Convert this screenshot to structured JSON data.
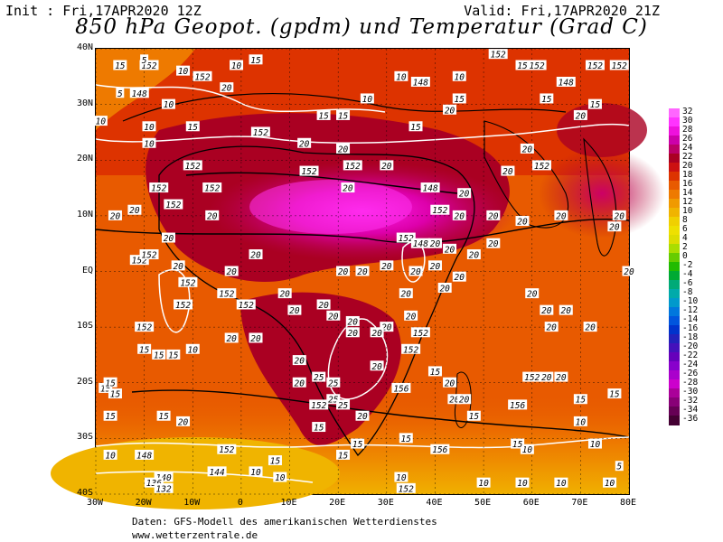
{
  "header": {
    "init": "Init : Fri,17APR2020 12Z",
    "valid": "Valid: Fri,17APR2020 21Z",
    "title": "850 hPa Geopot. (gpdm) und Temperatur (Grad C)"
  },
  "axes": {
    "lat_labels": [
      "40N",
      "30N",
      "20N",
      "10N",
      "EQ",
      "10S",
      "20S",
      "30S",
      "40S"
    ],
    "lon_labels": [
      "30W",
      "20W",
      "10W",
      "0",
      "10E",
      "20E",
      "30E",
      "40E",
      "50E",
      "60E",
      "70E",
      "80E"
    ]
  },
  "legend": {
    "labels": [
      "32",
      "30",
      "28",
      "26",
      "24",
      "22",
      "20",
      "18",
      "16",
      "14",
      "12",
      "10",
      "8",
      "6",
      "4",
      "2",
      "0",
      "-2",
      "-4",
      "-6",
      "-8",
      "-10",
      "-12",
      "-14",
      "-16",
      "-18",
      "-20",
      "-22",
      "-24",
      "-26",
      "-28",
      "-30",
      "-32",
      "-34",
      "-36"
    ],
    "colors": [
      "#ff66ff",
      "#ff33ff",
      "#ee11dd",
      "#cc00aa",
      "#bb0066",
      "#aa0022",
      "#cc1111",
      "#dd3300",
      "#e85a00",
      "#ee7a00",
      "#f09a00",
      "#f0b400",
      "#f0d000",
      "#eee000",
      "#dddd00",
      "#aadd00",
      "#66cc00",
      "#22bb00",
      "#00aa33",
      "#00aa77",
      "#00aaaa",
      "#0099cc",
      "#0077dd",
      "#0055dd",
      "#0033cc",
      "#2222bb",
      "#4411bb",
      "#6600bb",
      "#8800cc",
      "#aa00cc",
      "#cc00cc",
      "#aa0099",
      "#880077",
      "#660055",
      "#440033"
    ]
  },
  "contour_labels": [
    {
      "t": "15",
      "lon": -25,
      "lat": 37
    },
    {
      "t": "152",
      "lon": -19,
      "lat": 37
    },
    {
      "t": "10",
      "lon": -12,
      "lat": 36
    },
    {
      "t": "152",
      "lon": -8,
      "lat": 35
    },
    {
      "t": "10",
      "lon": -1,
      "lat": 37
    },
    {
      "t": "15",
      "lon": 3,
      "lat": 38
    },
    {
      "t": "148",
      "lon": -21,
      "lat": 32
    },
    {
      "t": "20",
      "lon": -3,
      "lat": 33
    },
    {
      "t": "5",
      "lon": -25,
      "lat": 32
    },
    {
      "t": "10",
      "lon": -29,
      "lat": 27
    },
    {
      "t": "10",
      "lon": -19,
      "lat": 26
    },
    {
      "t": "15",
      "lon": -10,
      "lat": 26
    },
    {
      "t": "152",
      "lon": 4,
      "lat": 25
    },
    {
      "t": "20",
      "lon": 13,
      "lat": 23
    },
    {
      "t": "20",
      "lon": 21,
      "lat": 22
    },
    {
      "t": "15",
      "lon": 17,
      "lat": 28
    },
    {
      "t": "15",
      "lon": 21,
      "lat": 28
    },
    {
      "t": "10",
      "lon": 26,
      "lat": 31
    },
    {
      "t": "148",
      "lon": 37,
      "lat": 34
    },
    {
      "t": "15",
      "lon": 36,
      "lat": 26
    },
    {
      "t": "20",
      "lon": 43,
      "lat": 29
    },
    {
      "t": "10",
      "lon": 33,
      "lat": 35
    },
    {
      "t": "10",
      "lon": 45,
      "lat": 35
    },
    {
      "t": "15",
      "lon": 45,
      "lat": 31
    },
    {
      "t": "152",
      "lon": 53,
      "lat": 39
    },
    {
      "t": "15",
      "lon": 58,
      "lat": 37
    },
    {
      "t": "152",
      "lon": 61,
      "lat": 37
    },
    {
      "t": "15",
      "lon": 63,
      "lat": 31
    },
    {
      "t": "148",
      "lon": 67,
      "lat": 34
    },
    {
      "t": "20",
      "lon": 70,
      "lat": 28
    },
    {
      "t": "152",
      "lon": 73,
      "lat": 37
    },
    {
      "t": "15",
      "lon": 73,
      "lat": 30
    },
    {
      "t": "152",
      "lon": 78,
      "lat": 37
    },
    {
      "t": "10",
      "lon": -15,
      "lat": 30
    },
    {
      "t": "10",
      "lon": -19,
      "lat": 23
    },
    {
      "t": "152",
      "lon": -10,
      "lat": 19
    },
    {
      "t": "152",
      "lon": -6,
      "lat": 15
    },
    {
      "t": "152",
      "lon": -17,
      "lat": 15
    },
    {
      "t": "152",
      "lon": -14,
      "lat": 12
    },
    {
      "t": "20",
      "lon": -22,
      "lat": 11
    },
    {
      "t": "20",
      "lon": -26,
      "lat": 10
    },
    {
      "t": "20",
      "lon": -6,
      "lat": 10
    },
    {
      "t": "152",
      "lon": 14,
      "lat": 18
    },
    {
      "t": "20",
      "lon": 30,
      "lat": 19
    },
    {
      "t": "152",
      "lon": 23,
      "lat": 19
    },
    {
      "t": "20",
      "lon": 22,
      "lat": 15
    },
    {
      "t": "152",
      "lon": 34,
      "lat": 6
    },
    {
      "t": "148",
      "lon": 37,
      "lat": 5
    },
    {
      "t": "148",
      "lon": 39,
      "lat": 15
    },
    {
      "t": "152",
      "lon": 41,
      "lat": 11
    },
    {
      "t": "20",
      "lon": 45,
      "lat": 10
    },
    {
      "t": "20",
      "lon": 46,
      "lat": 14
    },
    {
      "t": "20",
      "lon": 55,
      "lat": 18
    },
    {
      "t": "20",
      "lon": 59,
      "lat": 22
    },
    {
      "t": "152",
      "lon": 62,
      "lat": 19
    },
    {
      "t": "20",
      "lon": 52,
      "lat": 10
    },
    {
      "t": "20",
      "lon": 58,
      "lat": 9
    },
    {
      "t": "20",
      "lon": 66,
      "lat": 10
    },
    {
      "t": "20",
      "lon": 77,
      "lat": 8
    },
    {
      "t": "20",
      "lon": 78,
      "lat": 10
    },
    {
      "t": "20",
      "lon": -15,
      "lat": 6
    },
    {
      "t": "20",
      "lon": 3,
      "lat": 3
    },
    {
      "t": "20",
      "lon": -2,
      "lat": 0
    },
    {
      "t": "152",
      "lon": -21,
      "lat": 2
    },
    {
      "t": "152",
      "lon": -19,
      "lat": 3
    },
    {
      "t": "152",
      "lon": -11,
      "lat": -2
    },
    {
      "t": "152",
      "lon": -12,
      "lat": -6
    },
    {
      "t": "152",
      "lon": -3,
      "lat": -4
    },
    {
      "t": "152",
      "lon": 1,
      "lat": -6
    },
    {
      "t": "20",
      "lon": -13,
      "lat": 1
    },
    {
      "t": "20",
      "lon": 9,
      "lat": -4
    },
    {
      "t": "20",
      "lon": 11,
      "lat": -7
    },
    {
      "t": "20",
      "lon": 21,
      "lat": 0
    },
    {
      "t": "20",
      "lon": 25,
      "lat": 0
    },
    {
      "t": "20",
      "lon": 30,
      "lat": 1
    },
    {
      "t": "20",
      "lon": 36,
      "lat": 0
    },
    {
      "t": "20",
      "lon": 40,
      "lat": 1
    },
    {
      "t": "20",
      "lon": 42,
      "lat": -3
    },
    {
      "t": "20",
      "lon": 45,
      "lat": -1
    },
    {
      "t": "20",
      "lon": 40,
      "lat": 5
    },
    {
      "t": "20",
      "lon": 43,
      "lat": 4
    },
    {
      "t": "20",
      "lon": 48,
      "lat": 3
    },
    {
      "t": "20",
      "lon": 52,
      "lat": 5
    },
    {
      "t": "20",
      "lon": 34,
      "lat": -4
    },
    {
      "t": "20",
      "lon": 35,
      "lat": -8
    },
    {
      "t": "20",
      "lon": 30,
      "lat": -10
    },
    {
      "t": "20",
      "lon": 28,
      "lat": -11
    },
    {
      "t": "20",
      "lon": 19,
      "lat": -8
    },
    {
      "t": "20",
      "lon": 23,
      "lat": -9
    },
    {
      "t": "20",
      "lon": 23,
      "lat": -11
    },
    {
      "t": "20",
      "lon": 17,
      "lat": -6
    },
    {
      "t": "20",
      "lon": 3,
      "lat": -12
    },
    {
      "t": "20",
      "lon": 12,
      "lat": -16
    },
    {
      "t": "20",
      "lon": 28,
      "lat": -17
    },
    {
      "t": "152",
      "lon": 37,
      "lat": -11
    },
    {
      "t": "152",
      "lon": 35,
      "lat": -14
    },
    {
      "t": "20",
      "lon": 60,
      "lat": -4
    },
    {
      "t": "20",
      "lon": 63,
      "lat": -7
    },
    {
      "t": "20",
      "lon": 67,
      "lat": -7
    },
    {
      "t": "20",
      "lon": 72,
      "lat": -10
    },
    {
      "t": "20",
      "lon": 64,
      "lat": -10
    },
    {
      "t": "20",
      "lon": 80,
      "lat": 0
    },
    {
      "t": "152",
      "lon": -20,
      "lat": -10
    },
    {
      "t": "15",
      "lon": -20,
      "lat": -14
    },
    {
      "t": "15",
      "lon": -17,
      "lat": -15
    },
    {
      "t": "15",
      "lon": -14,
      "lat": -15
    },
    {
      "t": "10",
      "lon": -10,
      "lat": -14
    },
    {
      "t": "20",
      "lon": -2,
      "lat": -12
    },
    {
      "t": "20",
      "lon": 12,
      "lat": -20
    },
    {
      "t": "25",
      "lon": 16,
      "lat": -19
    },
    {
      "t": "25",
      "lon": 19,
      "lat": -20
    },
    {
      "t": "152",
      "lon": 16,
      "lat": -24
    },
    {
      "t": "25",
      "lon": 19,
      "lat": -23
    },
    {
      "t": "25",
      "lon": 21,
      "lat": -24
    },
    {
      "t": "20",
      "lon": 25,
      "lat": -26
    },
    {
      "t": "15",
      "lon": 24,
      "lat": -31
    },
    {
      "t": "156",
      "lon": 33,
      "lat": -21
    },
    {
      "t": "15",
      "lon": 34,
      "lat": -30
    },
    {
      "t": "156",
      "lon": 41,
      "lat": -32
    },
    {
      "t": "20",
      "lon": 44,
      "lat": -23
    },
    {
      "t": "20",
      "lon": 46,
      "lat": -23
    },
    {
      "t": "20",
      "lon": 43,
      "lat": -20
    },
    {
      "t": "15",
      "lon": 40,
      "lat": -18
    },
    {
      "t": "152",
      "lon": 60,
      "lat": -19
    },
    {
      "t": "20",
      "lon": 66,
      "lat": -19
    },
    {
      "t": "20",
      "lon": 63,
      "lat": -19
    },
    {
      "t": "156",
      "lon": 57,
      "lat": -24
    },
    {
      "t": "15",
      "lon": 48,
      "lat": -26
    },
    {
      "t": "15",
      "lon": 70,
      "lat": -23
    },
    {
      "t": "15",
      "lon": 77,
      "lat": -22
    },
    {
      "t": "10",
      "lon": 70,
      "lat": -27
    },
    {
      "t": "10",
      "lon": 73,
      "lat": -31
    },
    {
      "t": "10",
      "lon": 59,
      "lat": -32
    },
    {
      "t": "15",
      "lon": 57,
      "lat": -31
    },
    {
      "t": "10",
      "lon": 50,
      "lat": -38
    },
    {
      "t": "10",
      "lon": 58,
      "lat": -38
    },
    {
      "t": "5",
      "lon": 78,
      "lat": -35
    },
    {
      "t": "10",
      "lon": 66,
      "lat": -38
    },
    {
      "t": "10",
      "lon": 76,
      "lat": -38
    },
    {
      "t": "10",
      "lon": 33,
      "lat": -37
    },
    {
      "t": "152",
      "lon": 34,
      "lat": -39
    },
    {
      "t": "15",
      "lon": 21,
      "lat": -33
    },
    {
      "t": "15",
      "lon": 16,
      "lat": -28
    },
    {
      "t": "152",
      "lon": -3,
      "lat": -32
    },
    {
      "t": "148",
      "lon": -20,
      "lat": -33
    },
    {
      "t": "144",
      "lon": -5,
      "lat": -36
    },
    {
      "t": "140",
      "lon": -16,
      "lat": -37
    },
    {
      "t": "136",
      "lon": -18,
      "lat": -38
    },
    {
      "t": "132",
      "lon": -16,
      "lat": -39
    },
    {
      "t": "10",
      "lon": -27,
      "lat": -33
    },
    {
      "t": "10",
      "lon": 3,
      "lat": -36
    },
    {
      "t": "15",
      "lon": 7,
      "lat": -34
    },
    {
      "t": "10",
      "lon": 8,
      "lat": -37
    },
    {
      "t": "15",
      "lon": -27,
      "lat": -26
    },
    {
      "t": "15",
      "lon": -16,
      "lat": -26
    },
    {
      "t": "20",
      "lon": -12,
      "lat": -27
    },
    {
      "t": "15",
      "lon": -28,
      "lat": -21
    },
    {
      "t": "15",
      "lon": -26,
      "lat": -22
    },
    {
      "t": "15",
      "lon": -27,
      "lat": -20
    },
    {
      "t": "5",
      "lon": -20,
      "lat": 38
    }
  ],
  "credits": {
    "line1": "Daten: GFS-Modell des amerikanischen Wetterdienstes",
    "line2": "www.wetterzentrale.de"
  }
}
